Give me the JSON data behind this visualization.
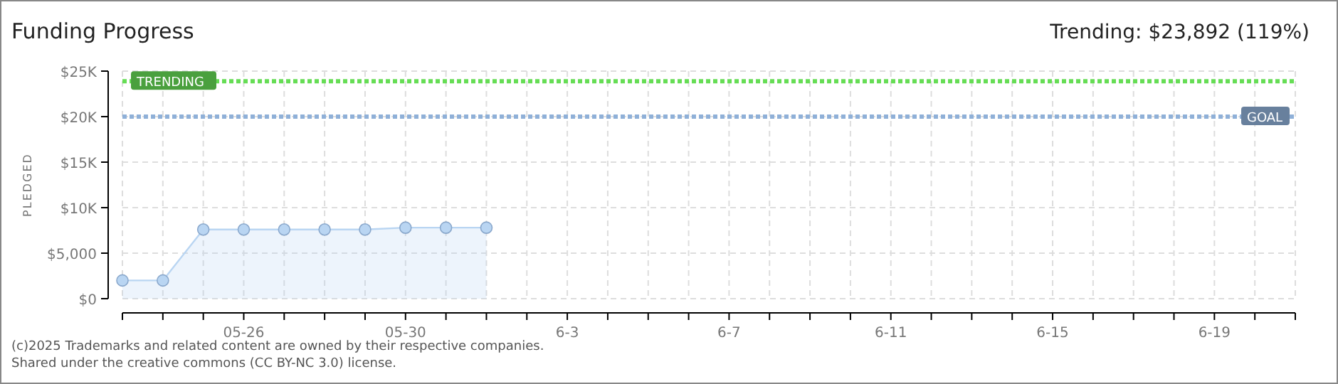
{
  "chart_data": {
    "type": "area",
    "title": "Funding Progress",
    "subtitle": "Trending: $23,892 (119%)",
    "ylabel": "PLEDGED",
    "x": [
      "2025-05-23",
      "2025-05-24",
      "2025-05-25",
      "2025-05-26",
      "2025-05-27",
      "2025-05-28",
      "2025-05-29",
      "2025-05-30",
      "2025-05-31",
      "2025-06-01"
    ],
    "series": [
      {
        "color": "#b9d5f2",
        "values": [
          2000,
          2000,
          7600,
          7600,
          7600,
          7600,
          7600,
          7800,
          7800,
          7800
        ]
      }
    ],
    "xlim": [
      "2025-05-23",
      "2025-06-21"
    ],
    "xticks": [
      {
        "value": "2025-05-23",
        "label": null
      },
      {
        "value": "2025-05-24",
        "label": null
      },
      {
        "value": "2025-05-25",
        "label": null
      },
      {
        "value": "2025-05-26",
        "label": "05-26"
      },
      {
        "value": "2025-05-27",
        "label": null
      },
      {
        "value": "2025-05-28",
        "label": null
      },
      {
        "value": "2025-05-29",
        "label": null
      },
      {
        "value": "2025-05-30",
        "label": "05-30"
      },
      {
        "value": "2025-05-31",
        "label": null
      },
      {
        "value": "2025-06-01",
        "label": null
      },
      {
        "value": "2025-06-02",
        "label": null
      },
      {
        "value": "2025-06-03",
        "label": "6-3"
      },
      {
        "value": "2025-06-04",
        "label": null
      },
      {
        "value": "2025-06-05",
        "label": null
      },
      {
        "value": "2025-06-06",
        "label": null
      },
      {
        "value": "2025-06-07",
        "label": "6-7"
      },
      {
        "value": "2025-06-08",
        "label": null
      },
      {
        "value": "2025-06-09",
        "label": null
      },
      {
        "value": "2025-06-10",
        "label": null
      },
      {
        "value": "2025-06-11",
        "label": "6-11"
      },
      {
        "value": "2025-06-12",
        "label": null
      },
      {
        "value": "2025-06-13",
        "label": null
      },
      {
        "value": "2025-06-14",
        "label": null
      },
      {
        "value": "2025-06-15",
        "label": "6-15"
      },
      {
        "value": "2025-06-16",
        "label": null
      },
      {
        "value": "2025-06-17",
        "label": null
      },
      {
        "value": "2025-06-18",
        "label": null
      },
      {
        "value": "2025-06-19",
        "label": "6-19"
      },
      {
        "value": "2025-06-20",
        "label": null
      },
      {
        "value": "2025-06-21",
        "label": null
      }
    ],
    "ylim": [
      0,
      25000
    ],
    "yticks": [
      {
        "value": 0,
        "label": "$0"
      },
      {
        "value": 5000,
        "label": "$5,000"
      },
      {
        "value": 10000,
        "label": "$10K"
      },
      {
        "value": 15000,
        "label": "$15K"
      },
      {
        "value": 20000,
        "label": "$20K"
      },
      {
        "value": 25000,
        "label": "$25K"
      }
    ],
    "ref_lines": [
      {
        "axis": "y",
        "value": 23892,
        "label": "TRENDING",
        "color": "#66dd55",
        "line_style": "dotted"
      },
      {
        "axis": "y",
        "value": 20000,
        "label": "GOAL",
        "color": "#8fb0d8",
        "line_style": "dotted"
      }
    ],
    "grid": true,
    "marker": "circle",
    "annotations": [
      "(c)2025 Trademarks and related content are owned by their respective companies.",
      "Shared under the creative commons (CC BY-NC 3.0) license."
    ]
  }
}
